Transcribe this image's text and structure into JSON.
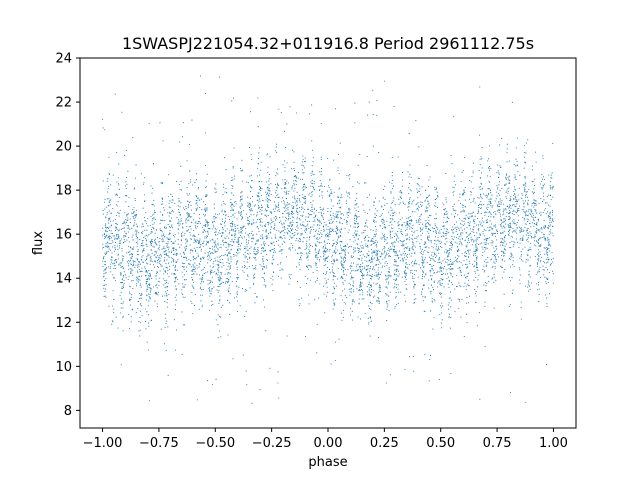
{
  "chart_data": {
    "type": "scatter",
    "title": "1SWASPJ221054.32+011916.8 Period 2961112.75s",
    "xlabel": "phase",
    "ylabel": "flux",
    "xlim": [
      -1.1,
      1.1
    ],
    "ylim": [
      7.2,
      24.0
    ],
    "x_ticks": [
      -1.0,
      -0.75,
      -0.5,
      -0.25,
      0.0,
      0.25,
      0.5,
      0.75,
      1.0
    ],
    "x_tick_labels": [
      "−1.00",
      "−0.75",
      "−0.50",
      "−0.25",
      "0.00",
      "0.25",
      "0.50",
      "0.75",
      "1.00"
    ],
    "y_ticks": [
      8,
      10,
      12,
      14,
      16,
      18,
      20,
      22,
      24
    ],
    "y_tick_labels": [
      "8",
      "10",
      "12",
      "14",
      "16",
      "18",
      "20",
      "22",
      "24"
    ],
    "grid": false,
    "marker_color": "#1f77b4",
    "series": [
      {
        "x_range": [
          -1.0,
          1.0
        ],
        "folded_period_phase": 1.0,
        "flux_profile": [
          {
            "phase": -1.0,
            "flux": 16.0
          },
          {
            "phase": -0.9,
            "flux": 15.3
          },
          {
            "phase": -0.8,
            "flux": 14.8
          },
          {
            "phase": -0.7,
            "flux": 15.6
          },
          {
            "phase": -0.6,
            "flux": 16.0
          },
          {
            "phase": -0.5,
            "flux": 15.0
          },
          {
            "phase": -0.4,
            "flux": 15.8
          },
          {
            "phase": -0.3,
            "flux": 16.4
          },
          {
            "phase": -0.2,
            "flux": 16.8
          },
          {
            "phase": -0.1,
            "flux": 16.5
          },
          {
            "phase": 0.0,
            "flux": 16.0
          },
          {
            "phase": 0.1,
            "flux": 15.3
          },
          {
            "phase": 0.2,
            "flux": 14.8
          },
          {
            "phase": 0.3,
            "flux": 15.6
          },
          {
            "phase": 0.4,
            "flux": 16.0
          },
          {
            "phase": 0.5,
            "flux": 15.0
          },
          {
            "phase": 0.6,
            "flux": 15.8
          },
          {
            "phase": 0.7,
            "flux": 16.4
          },
          {
            "phase": 0.8,
            "flux": 16.8
          },
          {
            "phase": 0.9,
            "flux": 16.5
          },
          {
            "phase": 1.0,
            "flux": 16.0
          }
        ],
        "flux_spread": 2.6,
        "flux_min_observed": 8.3,
        "flux_max_observed": 23.2
      }
    ]
  }
}
